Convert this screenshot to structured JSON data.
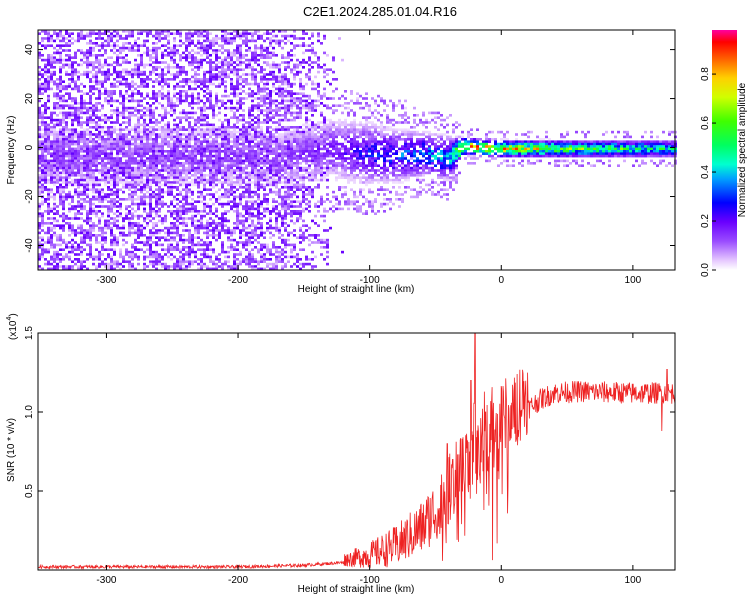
{
  "title": "C2E1.2024.285.01.04.R16",
  "chart_data": [
    {
      "type": "heatmap",
      "xlabel": "Height of straight line (km)",
      "ylabel": "Frequency (Hz)",
      "xlim": [
        -352,
        132
      ],
      "ylim": [
        -50,
        48
      ],
      "xticks": [
        -300,
        -200,
        -100,
        0,
        100
      ],
      "yticks": [
        -40,
        -20,
        0,
        20,
        40
      ],
      "colorbar": {
        "label": "Normalized spectral amplitude",
        "range": [
          0,
          0.98
        ],
        "ticks": [
          0.0,
          0.2,
          0.4,
          0.6,
          0.8
        ]
      },
      "noise_region_x": [
        -352,
        -120
      ],
      "noise_region_freq_spread_hz": 48,
      "center_band": [
        {
          "x": -160,
          "center": -3,
          "width": 14,
          "amp": 0.15
        },
        {
          "x": -130,
          "center": 0,
          "width": 14,
          "amp": 0.2
        },
        {
          "x": -100,
          "center": -2,
          "width": 14,
          "amp": 0.3
        },
        {
          "x": -80,
          "center": -3,
          "width": 12,
          "amp": 0.35
        },
        {
          "x": -60,
          "center": -2,
          "width": 10,
          "amp": 0.42
        },
        {
          "x": -40,
          "center": -4,
          "width": 10,
          "amp": 0.45
        },
        {
          "x": -30,
          "center": 1,
          "width": 4,
          "amp": 0.98
        },
        {
          "x": 0,
          "center": 0,
          "width": 4,
          "amp": 0.9
        },
        {
          "x": 50,
          "center": 0,
          "width": 4,
          "amp": 0.7
        },
        {
          "x": 100,
          "center": 0,
          "width": 4,
          "amp": 0.6
        },
        {
          "x": 132,
          "center": 0,
          "width": 4,
          "amp": 0.5
        }
      ]
    },
    {
      "type": "line",
      "xlabel": "Height of straight line (km)",
      "ylabel": "SNR (10 * v/v)",
      "y_multiplier_label": "(x10",
      "y_multiplier_exp": "4",
      "y_multiplier_close": ")",
      "xlim": [
        -352,
        132
      ],
      "ylim": [
        0,
        1.5
      ],
      "xticks": [
        -300,
        -200,
        -100,
        0,
        100
      ],
      "yticks": [
        0.5,
        1.0,
        1.5
      ],
      "series": [
        {
          "color": "#ee2222",
          "trend": [
            {
              "x": -352,
              "y": 0.02
            },
            {
              "x": -200,
              "y": 0.02
            },
            {
              "x": -150,
              "y": 0.03
            },
            {
              "x": -100,
              "y": 0.06
            },
            {
              "x": -80,
              "y": 0.1
            },
            {
              "x": -60,
              "y": 0.2
            },
            {
              "x": -45,
              "y": 0.35
            },
            {
              "x": -30,
              "y": 0.55
            },
            {
              "x": -20,
              "y": 0.72
            },
            {
              "x": -10,
              "y": 0.78
            },
            {
              "x": 0,
              "y": 0.82
            },
            {
              "x": 10,
              "y": 0.92
            },
            {
              "x": 20,
              "y": 1.02
            },
            {
              "x": 30,
              "y": 1.08
            },
            {
              "x": 40,
              "y": 1.12
            },
            {
              "x": 60,
              "y": 1.13
            },
            {
              "x": 100,
              "y": 1.12
            },
            {
              "x": 132,
              "y": 1.12
            }
          ],
          "spikes": [
            {
              "x": -20,
              "y": 1.5
            },
            {
              "x": -23,
              "y": 1.2
            },
            {
              "x": -41,
              "y": 0.8
            },
            {
              "x": -37,
              "y": 0.7
            },
            {
              "x": -12,
              "y": 1.0
            },
            {
              "x": 122,
              "y": 0.88
            },
            {
              "x": 126,
              "y": 1.27
            }
          ]
        }
      ]
    }
  ]
}
